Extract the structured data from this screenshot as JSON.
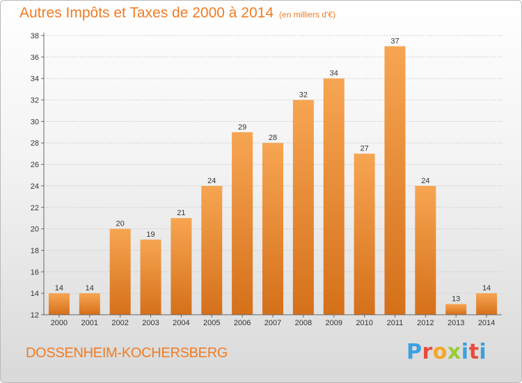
{
  "header": {
    "title": "Autres Impôts et Taxes de 2000 à 2014",
    "unit": "(en milliers d'€)"
  },
  "footer": {
    "city": "DOSSENHEIM-KOCHERSBERG"
  },
  "logo": {
    "text": "Proxiti",
    "colors": [
      "#3aa0e0",
      "#e84b3c",
      "#f5a623",
      "#9acd32",
      "#3aa0e0",
      "#e84b3c",
      "#3aa0e0"
    ]
  },
  "colors": {
    "accent": "#f07c24",
    "bar_top": "#f7a552",
    "bar_bottom": "#d5701a",
    "grid": "#cccccc"
  },
  "chart_data": {
    "type": "bar",
    "categories": [
      "2000",
      "2001",
      "2002",
      "2003",
      "2004",
      "2005",
      "2006",
      "2007",
      "2008",
      "2009",
      "2010",
      "2011",
      "2012",
      "2013",
      "2014"
    ],
    "values": [
      14,
      14,
      20,
      19,
      21,
      24,
      29,
      28,
      32,
      34,
      27,
      37,
      24,
      13,
      14
    ],
    "ylim": [
      12,
      38
    ],
    "yticks": [
      12,
      14,
      16,
      18,
      20,
      22,
      24,
      26,
      28,
      30,
      32,
      34,
      36,
      38
    ],
    "grid": true,
    "data_labels": true
  }
}
